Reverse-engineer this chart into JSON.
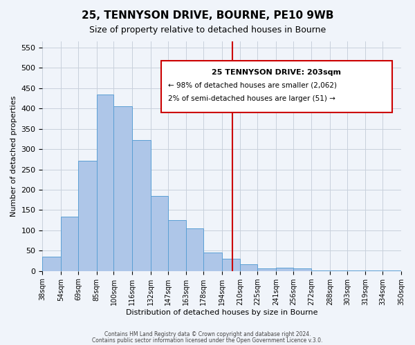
{
  "title": "25, TENNYSON DRIVE, BOURNE, PE10 9WB",
  "subtitle": "Size of property relative to detached houses in Bourne",
  "xlabel": "Distribution of detached houses by size in Bourne",
  "ylabel": "Number of detached properties",
  "bar_values": [
    35,
    133,
    272,
    435,
    405,
    322,
    184,
    125,
    105,
    46,
    30,
    16,
    7,
    8,
    7,
    2,
    1,
    1,
    2,
    1
  ],
  "bin_labels": [
    "38sqm",
    "54sqm",
    "69sqm",
    "85sqm",
    "100sqm",
    "116sqm",
    "132sqm",
    "147sqm",
    "163sqm",
    "178sqm",
    "194sqm",
    "210sqm",
    "225sqm",
    "241sqm",
    "256sqm",
    "272sqm",
    "288sqm",
    "303sqm",
    "319sqm",
    "334sqm",
    "350sqm"
  ],
  "bin_edges": [
    38,
    54,
    69,
    85,
    100,
    116,
    132,
    147,
    163,
    178,
    194,
    210,
    225,
    241,
    256,
    272,
    288,
    303,
    319,
    334,
    350
  ],
  "bar_color": "#aec6e8",
  "bar_edge_color": "#5a9fd4",
  "vline_x": 203,
  "vline_color": "#cc0000",
  "annotation_title": "25 TENNYSON DRIVE: 203sqm",
  "annotation_line1": "← 98% of detached houses are smaller (2,062)",
  "annotation_line2": "2% of semi-detached houses are larger (51) →",
  "annotation_box_color": "#cc0000",
  "ylim": [
    0,
    565
  ],
  "yticks": [
    0,
    50,
    100,
    150,
    200,
    250,
    300,
    350,
    400,
    450,
    500,
    550
  ],
  "footer1": "Contains HM Land Registry data © Crown copyright and database right 2024.",
  "footer2": "Contains public sector information licensed under the Open Government Licence v.3.0.",
  "bg_color": "#f0f4fa",
  "grid_color": "#c8d0dc"
}
